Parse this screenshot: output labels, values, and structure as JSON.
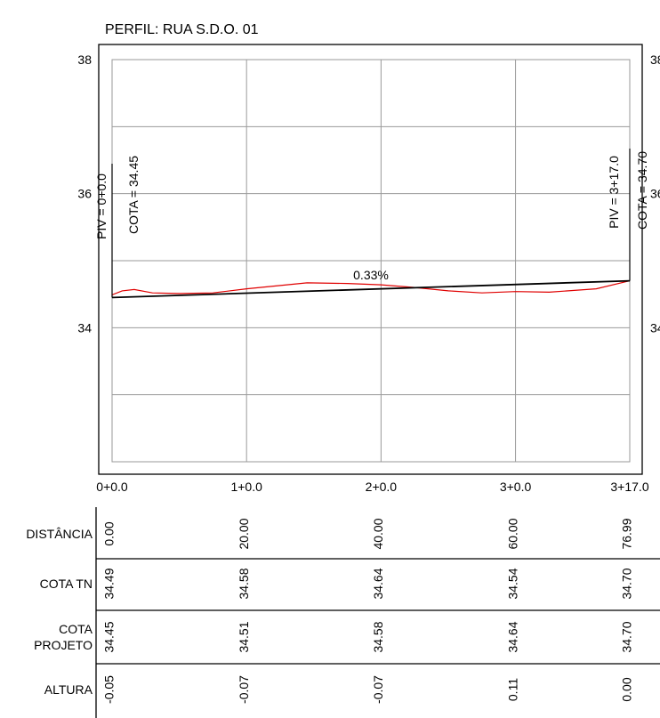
{
  "title": "PERFIL: RUA S.D.O. 01",
  "chart_data": {
    "type": "line",
    "title": "PERFIL: RUA S.D.O. 01",
    "xlim": [
      0,
      76.99
    ],
    "ylim": [
      32,
      38
    ],
    "grid": true,
    "x_ticks": [
      {
        "x": 0,
        "label": "0+0.0"
      },
      {
        "x": 20,
        "label": "1+0.0"
      },
      {
        "x": 40,
        "label": "2+0.0"
      },
      {
        "x": 60,
        "label": "3+0.0"
      },
      {
        "x": 76.99,
        "label": "3+17.0"
      }
    ],
    "y_ticks": [
      {
        "y": 34,
        "label": "34"
      },
      {
        "y": 36,
        "label": "36"
      },
      {
        "y": 38,
        "label": "38"
      }
    ],
    "series": [
      {
        "color": "#e00000",
        "x": [
          0,
          1.5,
          3.3,
          6,
          10,
          15,
          20,
          25,
          29,
          35,
          40,
          45,
          50,
          55,
          60,
          65,
          72,
          76.99
        ],
        "y": [
          34.49,
          34.55,
          34.57,
          34.52,
          34.51,
          34.52,
          34.58,
          34.63,
          34.67,
          34.66,
          34.64,
          34.6,
          34.55,
          34.52,
          34.54,
          34.53,
          34.58,
          34.7
        ]
      },
      {
        "color": "#000000",
        "x": [
          0,
          76.99
        ],
        "y": [
          34.45,
          34.7
        ]
      }
    ],
    "annotations": {
      "grade": "0.33%",
      "piv_start": "PIV = 0+0.0",
      "cota_start": "COTA = 34.45",
      "piv_end": "PIV = 3+17.0",
      "cota_end": "COTA = 34.70"
    }
  },
  "table": {
    "rows": [
      {
        "label": [
          "DISTÂNCIA"
        ],
        "values": [
          "0.00",
          "20.00",
          "40.00",
          "60.00",
          "76.99"
        ]
      },
      {
        "label": [
          "COTA TN"
        ],
        "values": [
          "34.49",
          "34.58",
          "34.64",
          "34.54",
          "34.70"
        ]
      },
      {
        "label": [
          "COTA",
          "PROJETO"
        ],
        "values": [
          "34.45",
          "34.51",
          "34.58",
          "34.64",
          "34.70"
        ]
      },
      {
        "label": [
          "ALTURA"
        ],
        "values": [
          "-0.05",
          "-0.07",
          "-0.07",
          "0.11",
          "0.00"
        ]
      }
    ]
  }
}
